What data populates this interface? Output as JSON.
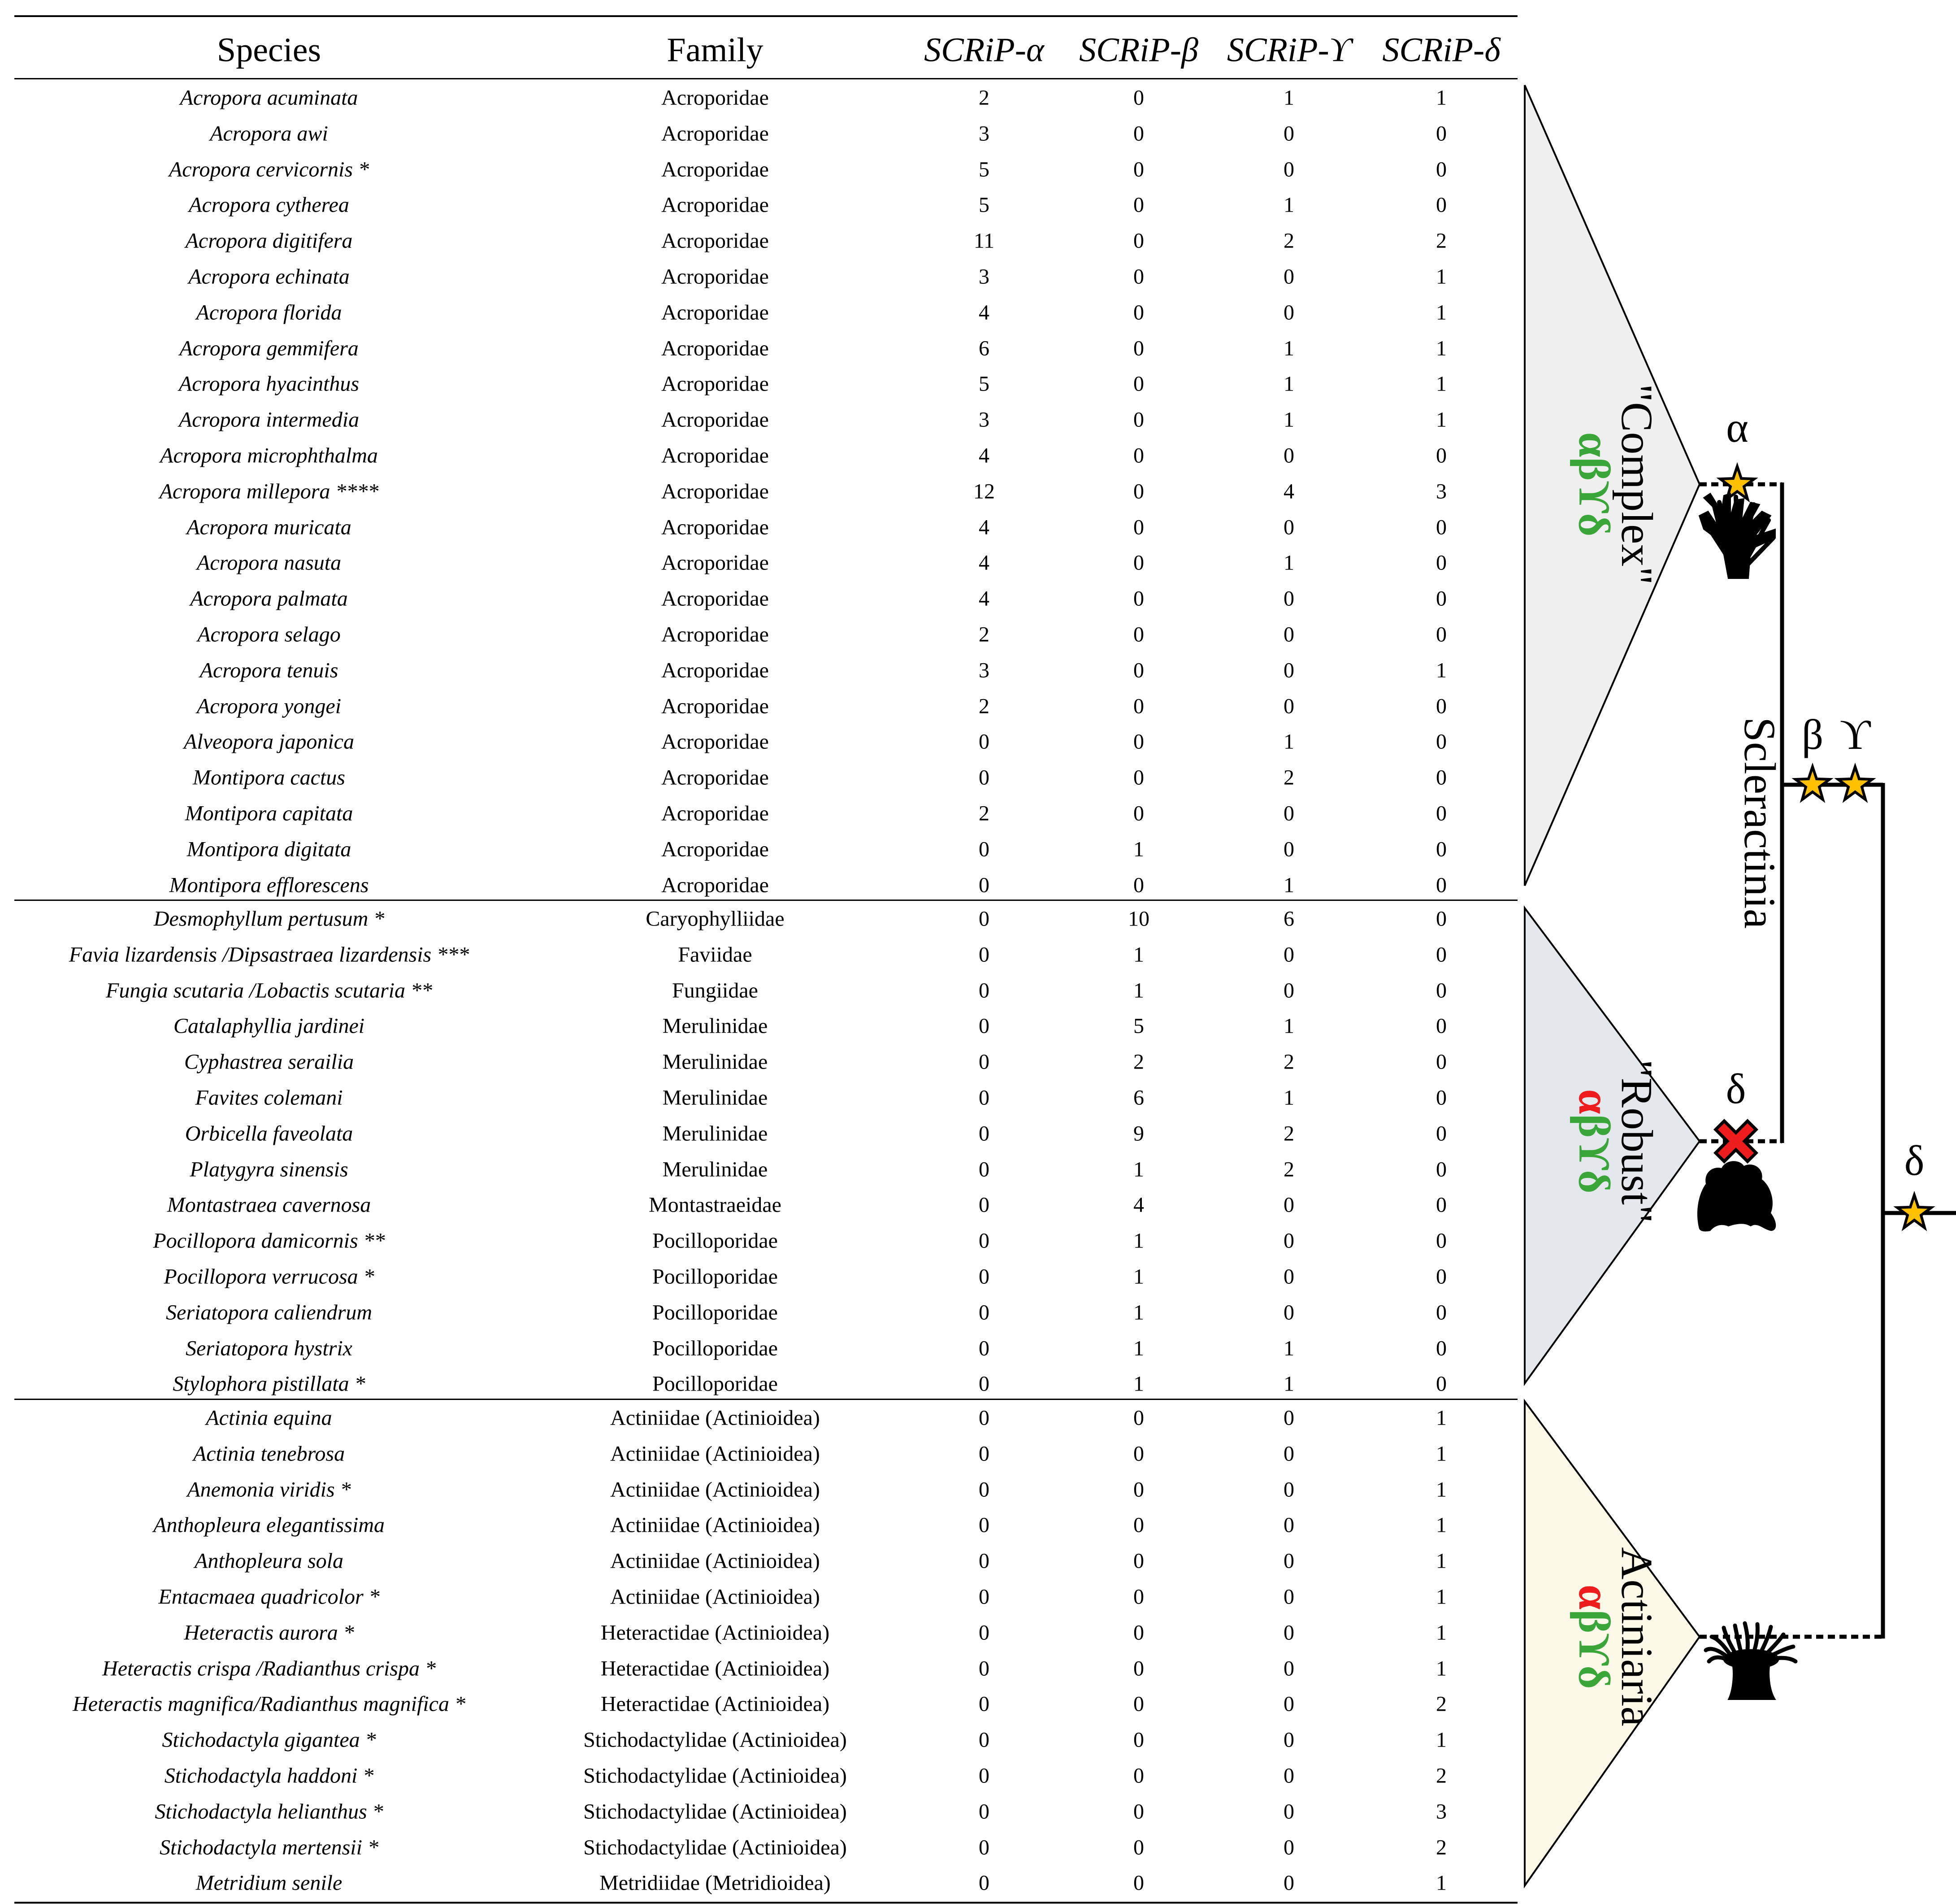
{
  "table": {
    "headers": [
      "Species",
      "Family",
      "SCRiP-α",
      "SCRiP-β",
      "SCRiP-ϒ",
      "SCRiP-δ"
    ],
    "groups": [
      {
        "rows": [
          [
            "Acropora acuminata",
            "Acroporidae",
            "2",
            "0",
            "1",
            "1"
          ],
          [
            "Acropora awi",
            "Acroporidae",
            "3",
            "0",
            "0",
            "0"
          ],
          [
            "Acropora cervicornis *",
            "Acroporidae",
            "5",
            "0",
            "0",
            "0"
          ],
          [
            "Acropora cytherea",
            "Acroporidae",
            "5",
            "0",
            "1",
            "0"
          ],
          [
            "Acropora digitifera",
            "Acroporidae",
            "11",
            "0",
            "2",
            "2"
          ],
          [
            "Acropora echinata",
            "Acroporidae",
            "3",
            "0",
            "0",
            "1"
          ],
          [
            "Acropora florida",
            "Acroporidae",
            "4",
            "0",
            "0",
            "1"
          ],
          [
            "Acropora gemmifera",
            "Acroporidae",
            "6",
            "0",
            "1",
            "1"
          ],
          [
            "Acropora hyacinthus",
            "Acroporidae",
            "5",
            "0",
            "1",
            "1"
          ],
          [
            "Acropora intermedia",
            "Acroporidae",
            "3",
            "0",
            "1",
            "1"
          ],
          [
            "Acropora microphthalma",
            "Acroporidae",
            "4",
            "0",
            "0",
            "0"
          ],
          [
            "Acropora millepora ****",
            "Acroporidae",
            "12",
            "0",
            "4",
            "3"
          ],
          [
            "Acropora muricata",
            "Acroporidae",
            "4",
            "0",
            "0",
            "0"
          ],
          [
            "Acropora nasuta",
            "Acroporidae",
            "4",
            "0",
            "1",
            "0"
          ],
          [
            "Acropora palmata",
            "Acroporidae",
            "4",
            "0",
            "0",
            "0"
          ],
          [
            "Acropora selago",
            "Acroporidae",
            "2",
            "0",
            "0",
            "0"
          ],
          [
            "Acropora tenuis",
            "Acroporidae",
            "3",
            "0",
            "0",
            "1"
          ],
          [
            "Acropora yongei",
            "Acroporidae",
            "2",
            "0",
            "0",
            "0"
          ],
          [
            "Alveopora japonica",
            "Acroporidae",
            "0",
            "0",
            "1",
            "0"
          ],
          [
            "Montipora cactus",
            "Acroporidae",
            "0",
            "0",
            "2",
            "0"
          ],
          [
            "Montipora capitata",
            "Acroporidae",
            "2",
            "0",
            "0",
            "0"
          ],
          [
            "Montipora digitata",
            "Acroporidae",
            "0",
            "1",
            "0",
            "0"
          ],
          [
            "Montipora efflorescens",
            "Acroporidae",
            "0",
            "0",
            "1",
            "0"
          ]
        ]
      },
      {
        "rows": [
          [
            "Desmophyllum pertusum *",
            "Caryophylliidae",
            "0",
            "10",
            "6",
            "0"
          ],
          [
            "Favia lizardensis /Dipsastraea lizardensis ***",
            "Faviidae",
            "0",
            "1",
            "0",
            "0"
          ],
          [
            "Fungia scutaria /Lobactis scutaria **",
            "Fungiidae",
            "0",
            "1",
            "0",
            "0"
          ],
          [
            "Catalaphyllia jardinei",
            "Merulinidae",
            "0",
            "5",
            "1",
            "0"
          ],
          [
            "Cyphastrea serailia",
            "Merulinidae",
            "0",
            "2",
            "2",
            "0"
          ],
          [
            "Favites colemani",
            "Merulinidae",
            "0",
            "6",
            "1",
            "0"
          ],
          [
            "Orbicella faveolata",
            "Merulinidae",
            "0",
            "9",
            "2",
            "0"
          ],
          [
            "Platygyra sinensis",
            "Merulinidae",
            "0",
            "1",
            "2",
            "0"
          ],
          [
            "Montastraea cavernosa",
            "Montastraeidae",
            "0",
            "4",
            "0",
            "0"
          ],
          [
            "Pocillopora damicornis **",
            "Pocilloporidae",
            "0",
            "1",
            "0",
            "0"
          ],
          [
            "Pocillopora verrucosa *",
            "Pocilloporidae",
            "0",
            "1",
            "0",
            "0"
          ],
          [
            "Seriatopora caliendrum",
            "Pocilloporidae",
            "0",
            "1",
            "0",
            "0"
          ],
          [
            "Seriatopora hystrix",
            "Pocilloporidae",
            "0",
            "1",
            "1",
            "0"
          ],
          [
            "Stylophora pistillata *",
            "Pocilloporidae",
            "0",
            "1",
            "1",
            "0"
          ]
        ]
      },
      {
        "rows": [
          [
            "Actinia equina",
            "Actiniidae (Actinioidea)",
            "0",
            "0",
            "0",
            "1"
          ],
          [
            "Actinia tenebrosa",
            "Actiniidae (Actinioidea)",
            "0",
            "0",
            "0",
            "1"
          ],
          [
            "Anemonia viridis *",
            "Actiniidae (Actinioidea)",
            "0",
            "0",
            "0",
            "1"
          ],
          [
            "Anthopleura elegantissima",
            "Actiniidae (Actinioidea)",
            "0",
            "0",
            "0",
            "1"
          ],
          [
            "Anthopleura sola",
            "Actiniidae (Actinioidea)",
            "0",
            "0",
            "0",
            "1"
          ],
          [
            "Entacmaea quadricolor *",
            "Actiniidae (Actinioidea)",
            "0",
            "0",
            "0",
            "1"
          ],
          [
            "Heteractis aurora *",
            "Heteractidae (Actinioidea)",
            "0",
            "0",
            "0",
            "1"
          ],
          [
            "Heteractis crispa /Radianthus crispa *",
            "Heteractidae (Actinioidea)",
            "0",
            "0",
            "0",
            "1"
          ],
          [
            "Heteractis magnifica/Radianthus magnifica *",
            "Heteractidae (Actinioidea)",
            "0",
            "0",
            "0",
            "2"
          ],
          [
            "Stichodactyla gigantea *",
            "Stichodactylidae (Actinioidea)",
            "0",
            "0",
            "0",
            "1"
          ],
          [
            "Stichodactyla haddoni *",
            "Stichodactylidae (Actinioidea)",
            "0",
            "0",
            "0",
            "2"
          ],
          [
            "Stichodactyla helianthus *",
            "Stichodactylidae (Actinioidea)",
            "0",
            "0",
            "0",
            "3"
          ],
          [
            "Stichodactyla mertensii *",
            "Stichodactylidae (Actinioidea)",
            "0",
            "0",
            "0",
            "2"
          ],
          [
            "Metridium senile",
            "Metridiidae (Metridioidea)",
            "0",
            "0",
            "0",
            "1"
          ]
        ]
      }
    ]
  },
  "tree": {
    "clades": [
      {
        "name": "\"Complex\"",
        "genes": [
          "α",
          "β",
          "ϒ",
          "δ"
        ],
        "gene_colors": [
          "#3aa63a",
          "#3aa63a",
          "#3aa63a",
          "#3aa63a"
        ],
        "fill": "#efefef"
      },
      {
        "name": "\"Robust\"",
        "genes": [
          "α",
          "β",
          "ϒ",
          "δ"
        ],
        "gene_colors": [
          "#ee1c1c",
          "#3aa63a",
          "#3aa63a",
          "#3aa63a"
        ],
        "fill": "#e4e8ed"
      },
      {
        "name": "Actiniaria",
        "genes": [
          "α",
          "β",
          "ϒ",
          "δ"
        ],
        "gene_colors": [
          "#ee1c1c",
          "#3aa63a",
          "#3aa63a",
          "#3aa63a"
        ],
        "fill": "#fdf9e9"
      }
    ],
    "order_label": "Scleractinia",
    "event_labels": {
      "alpha": "α",
      "beta": "β",
      "gamma": "ϒ",
      "delta_loss": "δ",
      "delta_gain": "δ"
    },
    "colors": {
      "star_fill": "#ffc000",
      "loss_mark": "#ee1c1c"
    }
  }
}
